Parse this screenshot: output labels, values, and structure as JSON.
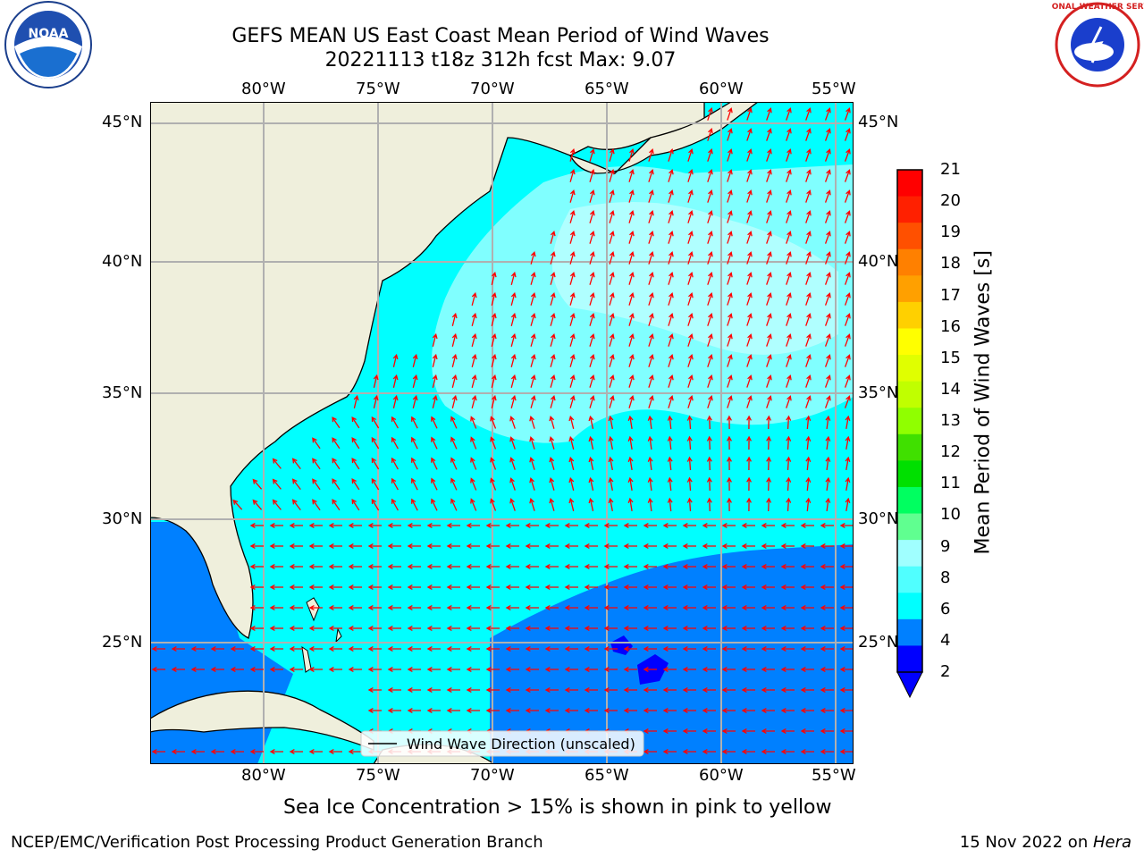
{
  "title_line1": "GEFS MEAN US East Coast Mean Period of Wind Waves",
  "title_line2": "20221113 t18z 312h fcst   Max: 9.07",
  "logos": {
    "left": {
      "icon": "noaa-logo",
      "text": "NOAA"
    },
    "right": {
      "icon": "nws-logo",
      "ring_text": "NATIONAL WEATHER SERVICE"
    }
  },
  "map": {
    "lon_labels": [
      "80°W",
      "75°W",
      "70°W",
      "65°W",
      "60°W",
      "55°W"
    ],
    "lat_labels": [
      "45°N",
      "40°N",
      "35°N",
      "30°N",
      "25°N"
    ],
    "legend_label": "Wind Wave Direction (unscaled)",
    "colors": {
      "land": "#efefdc",
      "ocean_4_6": "#00ffff",
      "ocean_2_4": "#0080ff",
      "ocean_6_8": "#80ffff",
      "ocean_8_9": "#b0ffff",
      "arrow": "#ff0000",
      "grid": "#b0b0b0"
    }
  },
  "colorbar": {
    "label": "Mean Period of Wind Waves [s]",
    "ticks": [
      "21",
      "20",
      "19",
      "18",
      "17",
      "16",
      "15",
      "14",
      "13",
      "12",
      "11",
      "10",
      "9",
      "8",
      "6",
      "4",
      "2"
    ],
    "colors": [
      "#ff0000",
      "#ff2000",
      "#ff5000",
      "#ff8000",
      "#ffa000",
      "#ffd000",
      "#ffff00",
      "#e0ff00",
      "#c0ff00",
      "#90ff00",
      "#40e000",
      "#00e000",
      "#00ff60",
      "#60ff90",
      "#a0ffff",
      "#50ffff",
      "#00ffff",
      "#0080ff",
      "#0000ff"
    ]
  },
  "caption": "Sea Ice Concentration > 15% is shown in pink to yellow",
  "footer_left": "NCEP/EMC/Verification Post Processing Product Generation Branch",
  "footer_right_date": "15 Nov 2022 on ",
  "footer_right_host": "Hera"
}
